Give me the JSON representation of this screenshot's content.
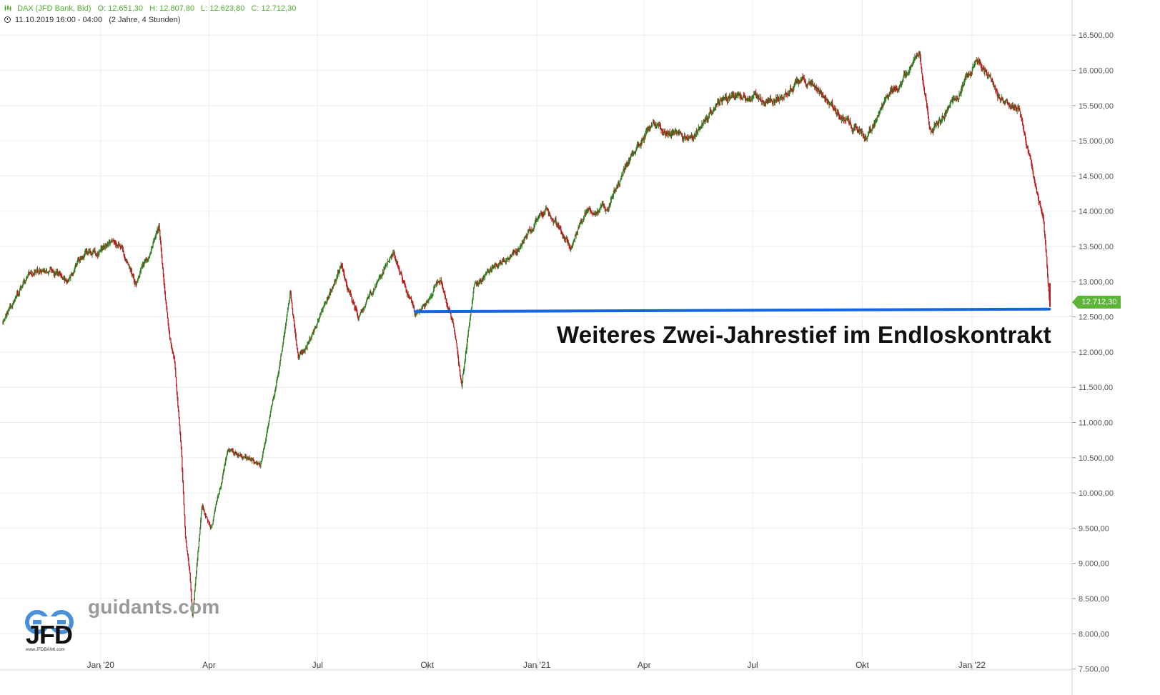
{
  "header": {
    "instrument": "DAX (JFD Bank, Bid)",
    "open": "O: 12.651,30",
    "high": "H: 12.807,80",
    "low": "L: 12.623,80",
    "close": "C: 12.712,30",
    "date": "11.10.2019 16:00 - 04:00",
    "range": "(2 Jahre, 4 Stunden)"
  },
  "annotation": "Weiteres Zwei-Jahrestief im Endloskontrakt",
  "branding": {
    "site": "guidants.com",
    "logo_text": "JFD",
    "logo_url": "www.JFDBANK.com"
  },
  "last_price_label": "12.712,30",
  "colors": {
    "up": "#2e7d1f",
    "down": "#b71c1c",
    "support_line": "#1565e0",
    "price_tag": "#5bb536",
    "header_text": "#4caf2d",
    "grid": "#ececec"
  },
  "chart_data": {
    "type": "line",
    "title": "",
    "style": "candlestick",
    "instrument": "DAX (JFD Bank, Bid)",
    "xlabel": "",
    "ylabel": "",
    "x_ticks": [
      "Jan '20",
      "Apr",
      "Jul",
      "Okt",
      "Jan '21",
      "Apr",
      "Jul",
      "Okt",
      "Jan '22"
    ],
    "y_ticks": [
      "16.500,00",
      "16.000,00",
      "15.500,00",
      "15.000,00",
      "14.500,00",
      "14.000,00",
      "13.500,00",
      "13.000,00",
      "12.500,00",
      "12.000,00",
      "11.500,00",
      "11.000,00",
      "10.500,00",
      "10.000,00",
      "9.500,00",
      "9.000,00",
      "8.500,00",
      "8.000,00",
      "7.500,00"
    ],
    "ylim": [
      7500,
      16950
    ],
    "xlim": [
      "2019-10-11",
      "2022-03-08"
    ],
    "grid": true,
    "series": [
      {
        "values_x": [
          "2019-10-11",
          "2019-11-01",
          "2019-11-20",
          "2019-12-03",
          "2019-12-16",
          "2020-01-02",
          "2020-01-17",
          "2020-01-31",
          "2020-02-19",
          "2020-02-27",
          "2020-03-03",
          "2020-03-09",
          "2020-03-12",
          "2020-03-16",
          "2020-03-18",
          "2020-03-26",
          "2020-04-03",
          "2020-04-17",
          "2020-05-14",
          "2020-05-29",
          "2020-06-08",
          "2020-06-15",
          "2020-06-25",
          "2020-07-21",
          "2020-08-04",
          "2020-09-02",
          "2020-09-21",
          "2020-10-02",
          "2020-10-12",
          "2020-10-23",
          "2020-10-30",
          "2020-11-09",
          "2020-11-30",
          "2020-12-18",
          "2021-01-08",
          "2021-01-29",
          "2021-02-12",
          "2021-03-02",
          "2021-03-17",
          "2021-04-05",
          "2021-05-12",
          "2021-05-31",
          "2021-06-21",
          "2021-07-19",
          "2021-08-13",
          "2021-09-20",
          "2021-10-05",
          "2021-10-20",
          "2021-11-18",
          "2021-11-26",
          "2021-12-01",
          "2021-12-20",
          "2022-01-05",
          "2022-01-24",
          "2022-02-02",
          "2022-02-10",
          "2022-02-24",
          "2022-03-02",
          "2022-03-07"
        ],
        "values": [
          12420,
          13080,
          13200,
          12980,
          13380,
          13450,
          13550,
          12950,
          13760,
          12300,
          11900,
          10500,
          9400,
          8800,
          8260,
          9800,
          9500,
          10600,
          10400,
          11700,
          12850,
          11900,
          12200,
          13200,
          12500,
          13400,
          12550,
          12700,
          13050,
          12400,
          11540,
          12900,
          13250,
          13500,
          14050,
          13500,
          14000,
          14050,
          14650,
          15200,
          15000,
          15500,
          15650,
          15550,
          15900,
          15250,
          15050,
          15550,
          16250,
          15250,
          15200,
          15650,
          16200,
          15600,
          15500,
          15450,
          14300,
          13900,
          12712
        ],
        "name": ""
      }
    ],
    "support_line": {
      "from": [
        "2020-09-21",
        12575
      ],
      "to": [
        "2022-03-07",
        12610
      ]
    },
    "last_price": 12712.3
  }
}
